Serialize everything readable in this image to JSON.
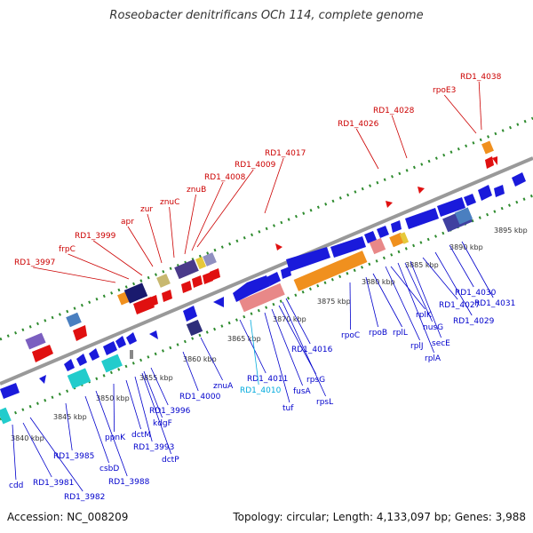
{
  "title": "Roseobacter denitrificans OCh 114, complete genome",
  "footer": {
    "accession": "Accession: NC_008209",
    "stats": "Topology: circular; Length: 4,133,097 bp; Genes: 3,988"
  },
  "colors": {
    "backbone": "#999999",
    "tick_dots": "#2e8b2e",
    "label_top": "#cc0000",
    "label_bottom": "#0000cc",
    "label_highlight": "#00aadd",
    "scale_text": "#333333"
  },
  "scale_labels": [
    "3840 kbp",
    "3845 kbp",
    "3850 kbp",
    "3855 kbp",
    "3860 kbp",
    "3865 kbp",
    "3870 kbp",
    "3875 kbp",
    "3880 kbp",
    "3885 kbp",
    "3890 kbp",
    "3895 kbp"
  ],
  "top_labels": [
    "RD1_3997",
    "frpC",
    "RD1_3999",
    "apr",
    "zur",
    "znuC",
    "znuB",
    "RD1_4008",
    "RD1_4009",
    "RD1_4017",
    "RD1_4026",
    "RD1_4028",
    "rpoE3",
    "RD1_4038"
  ],
  "bottom_labels": [
    "cdd",
    "RD1_3981",
    "RD1_3982",
    "RD1_3985",
    "csbD",
    "RD1_3988",
    "ppnK",
    "dctM",
    "RD1_3993",
    "dctP",
    "kdgF",
    "RD1_3996",
    "RD1_4000",
    "znuA",
    "RD1_4011",
    "RD1_4010",
    "tuf",
    "fusA",
    "rpsG",
    "rpsL",
    "RD1_4016",
    "rpoC",
    "rpoB",
    "rplL",
    "rplJ",
    "rplA",
    "rplK",
    "nusG",
    "secE",
    "RD1_4027",
    "RD1_4029",
    "RD1_4030",
    "RD1_4031"
  ]
}
